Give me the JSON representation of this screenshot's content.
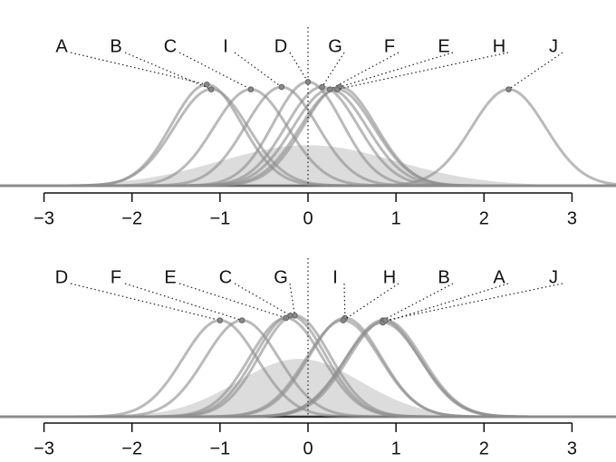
{
  "chart_data": [
    {
      "type": "density",
      "xlim": [
        -3.5,
        3.5
      ],
      "xticks": [
        {
          "value": -3,
          "label": "−3"
        },
        {
          "value": -2,
          "label": "−2"
        },
        {
          "value": -1,
          "label": "−1"
        },
        0,
        1,
        2,
        3
      ],
      "reference_line": 0,
      "prior": {
        "mean": 0,
        "sd": 1,
        "color": "#dcdcdc"
      },
      "series": [
        {
          "name": "A",
          "mean": -1.15,
          "sd": 0.4,
          "color": "#8c8c8c"
        },
        {
          "name": "B",
          "mean": -1.1,
          "sd": 0.42,
          "color": "#8c8c8c"
        },
        {
          "name": "C",
          "mean": -0.65,
          "sd": 0.42,
          "color": "#8c8c8c"
        },
        {
          "name": "I",
          "mean": -0.3,
          "sd": 0.41,
          "color": "#8c8c8c"
        },
        {
          "name": "D",
          "mean": 0.0,
          "sd": 0.39,
          "color": "#8c8c8c"
        },
        {
          "name": "G",
          "mean": 0.16,
          "sd": 0.41,
          "color": "#8c8c8c"
        },
        {
          "name": "F",
          "mean": 0.25,
          "sd": 0.42,
          "color": "#8c8c8c"
        },
        {
          "name": "E",
          "mean": 0.36,
          "sd": 0.41,
          "color": "#8c8c8c"
        },
        {
          "name": "H",
          "mean": 0.33,
          "sd": 0.42,
          "color": "#8c8c8c"
        },
        {
          "name": "J",
          "mean": 2.28,
          "sd": 0.42,
          "color": "#8c8c8c"
        }
      ]
    },
    {
      "type": "density",
      "xlim": [
        -3.5,
        3.5
      ],
      "xticks": [
        {
          "value": -3,
          "label": "−3"
        },
        {
          "value": -2,
          "label": "−2"
        },
        {
          "value": -1,
          "label": "−1"
        },
        0,
        1,
        2,
        3
      ],
      "reference_line": 0,
      "prior": {
        "mean": -0.1,
        "sd": 0.7,
        "color": "#dcdcdc"
      },
      "series": [
        {
          "name": "D",
          "mean": -1.0,
          "sd": 0.42,
          "color": "#8c8c8c"
        },
        {
          "name": "F",
          "mean": -0.75,
          "sd": 0.42,
          "color": "#8c8c8c"
        },
        {
          "name": "E",
          "mean": -0.25,
          "sd": 0.41,
          "color": "#8c8c8c"
        },
        {
          "name": "C",
          "mean": -0.2,
          "sd": 0.4,
          "color": "#8c8c8c"
        },
        {
          "name": "G",
          "mean": -0.15,
          "sd": 0.4,
          "color": "#8c8c8c"
        },
        {
          "name": "I",
          "mean": 0.42,
          "sd": 0.41,
          "color": "#8c8c8c"
        },
        {
          "name": "H",
          "mean": 0.4,
          "sd": 0.42,
          "color": "#8c8c8c"
        },
        {
          "name": "B",
          "mean": 0.85,
          "sd": 0.42,
          "color": "#8c8c8c"
        },
        {
          "name": "A",
          "mean": 0.85,
          "sd": 0.43,
          "color": "#8c8c8c"
        },
        {
          "name": "J",
          "mean": 0.88,
          "sd": 0.42,
          "color": "#8c8c8c"
        }
      ]
    }
  ]
}
